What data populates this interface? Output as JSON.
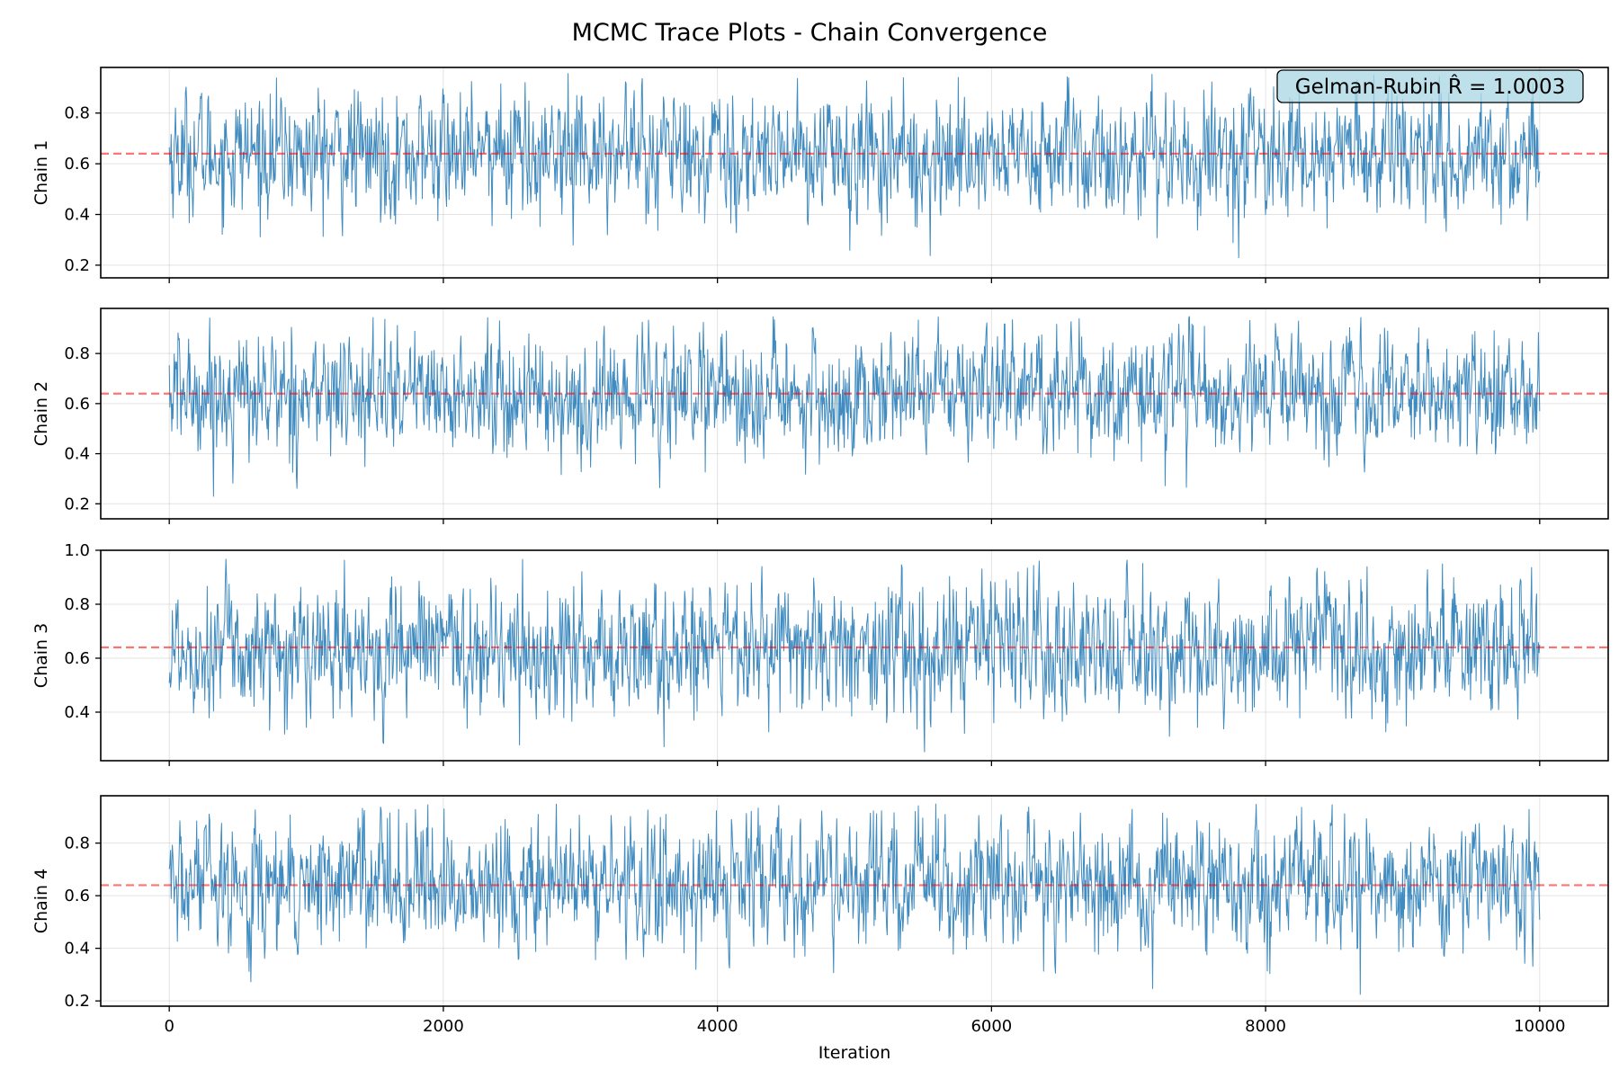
{
  "title": "MCMC Trace Plots - Chain Convergence",
  "annotation": "Gelman-Rubin R̂ = 1.0003",
  "colors": {
    "trace": "#1f77b4",
    "mean_line": "#ff0000",
    "annotation_bg": "#add8e6"
  },
  "chart_data": [
    {
      "type": "line",
      "ylabel": "Chain 1",
      "xlim": [
        -500,
        10500
      ],
      "ylim": [
        0.15,
        0.98
      ],
      "yticks": [
        0.2,
        0.4,
        0.6,
        0.8
      ],
      "ytick_labels": [
        "0.2",
        "0.4",
        "0.6",
        "0.8"
      ],
      "mean_line": 0.64,
      "iterations": [
        0,
        10000
      ],
      "trace_summary": {
        "center": 0.64,
        "min": 0.19,
        "max": 0.96
      },
      "grid": true
    },
    {
      "type": "line",
      "ylabel": "Chain 2",
      "xlim": [
        -500,
        10500
      ],
      "ylim": [
        0.14,
        0.98
      ],
      "yticks": [
        0.2,
        0.4,
        0.6,
        0.8
      ],
      "ytick_labels": [
        "0.2",
        "0.4",
        "0.6",
        "0.8"
      ],
      "mean_line": 0.64,
      "iterations": [
        0,
        10000
      ],
      "trace_summary": {
        "center": 0.64,
        "min": 0.17,
        "max": 0.95
      },
      "grid": true
    },
    {
      "type": "line",
      "ylabel": "Chain 3",
      "xlim": [
        -500,
        10500
      ],
      "ylim": [
        0.22,
        1.0
      ],
      "yticks": [
        0.4,
        0.6,
        0.8,
        1.0
      ],
      "ytick_labels": [
        "0.4",
        "0.6",
        "0.8",
        "1.0"
      ],
      "mean_line": 0.64,
      "iterations": [
        0,
        10000
      ],
      "trace_summary": {
        "center": 0.64,
        "min": 0.25,
        "max": 0.97
      },
      "grid": true
    },
    {
      "type": "line",
      "ylabel": "Chain 4",
      "xlim": [
        -500,
        10500
      ],
      "ylim": [
        0.18,
        0.98
      ],
      "yticks": [
        0.2,
        0.4,
        0.6,
        0.8
      ],
      "ytick_labels": [
        "0.2",
        "0.4",
        "0.6",
        "0.8"
      ],
      "xticks": [
        0,
        2000,
        4000,
        6000,
        8000,
        10000
      ],
      "xtick_labels": [
        "0",
        "2000",
        "4000",
        "6000",
        "8000",
        "10000"
      ],
      "xlabel": "Iteration",
      "mean_line": 0.64,
      "iterations": [
        0,
        10000
      ],
      "trace_summary": {
        "center": 0.64,
        "min": 0.21,
        "max": 0.95
      },
      "grid": true
    }
  ]
}
